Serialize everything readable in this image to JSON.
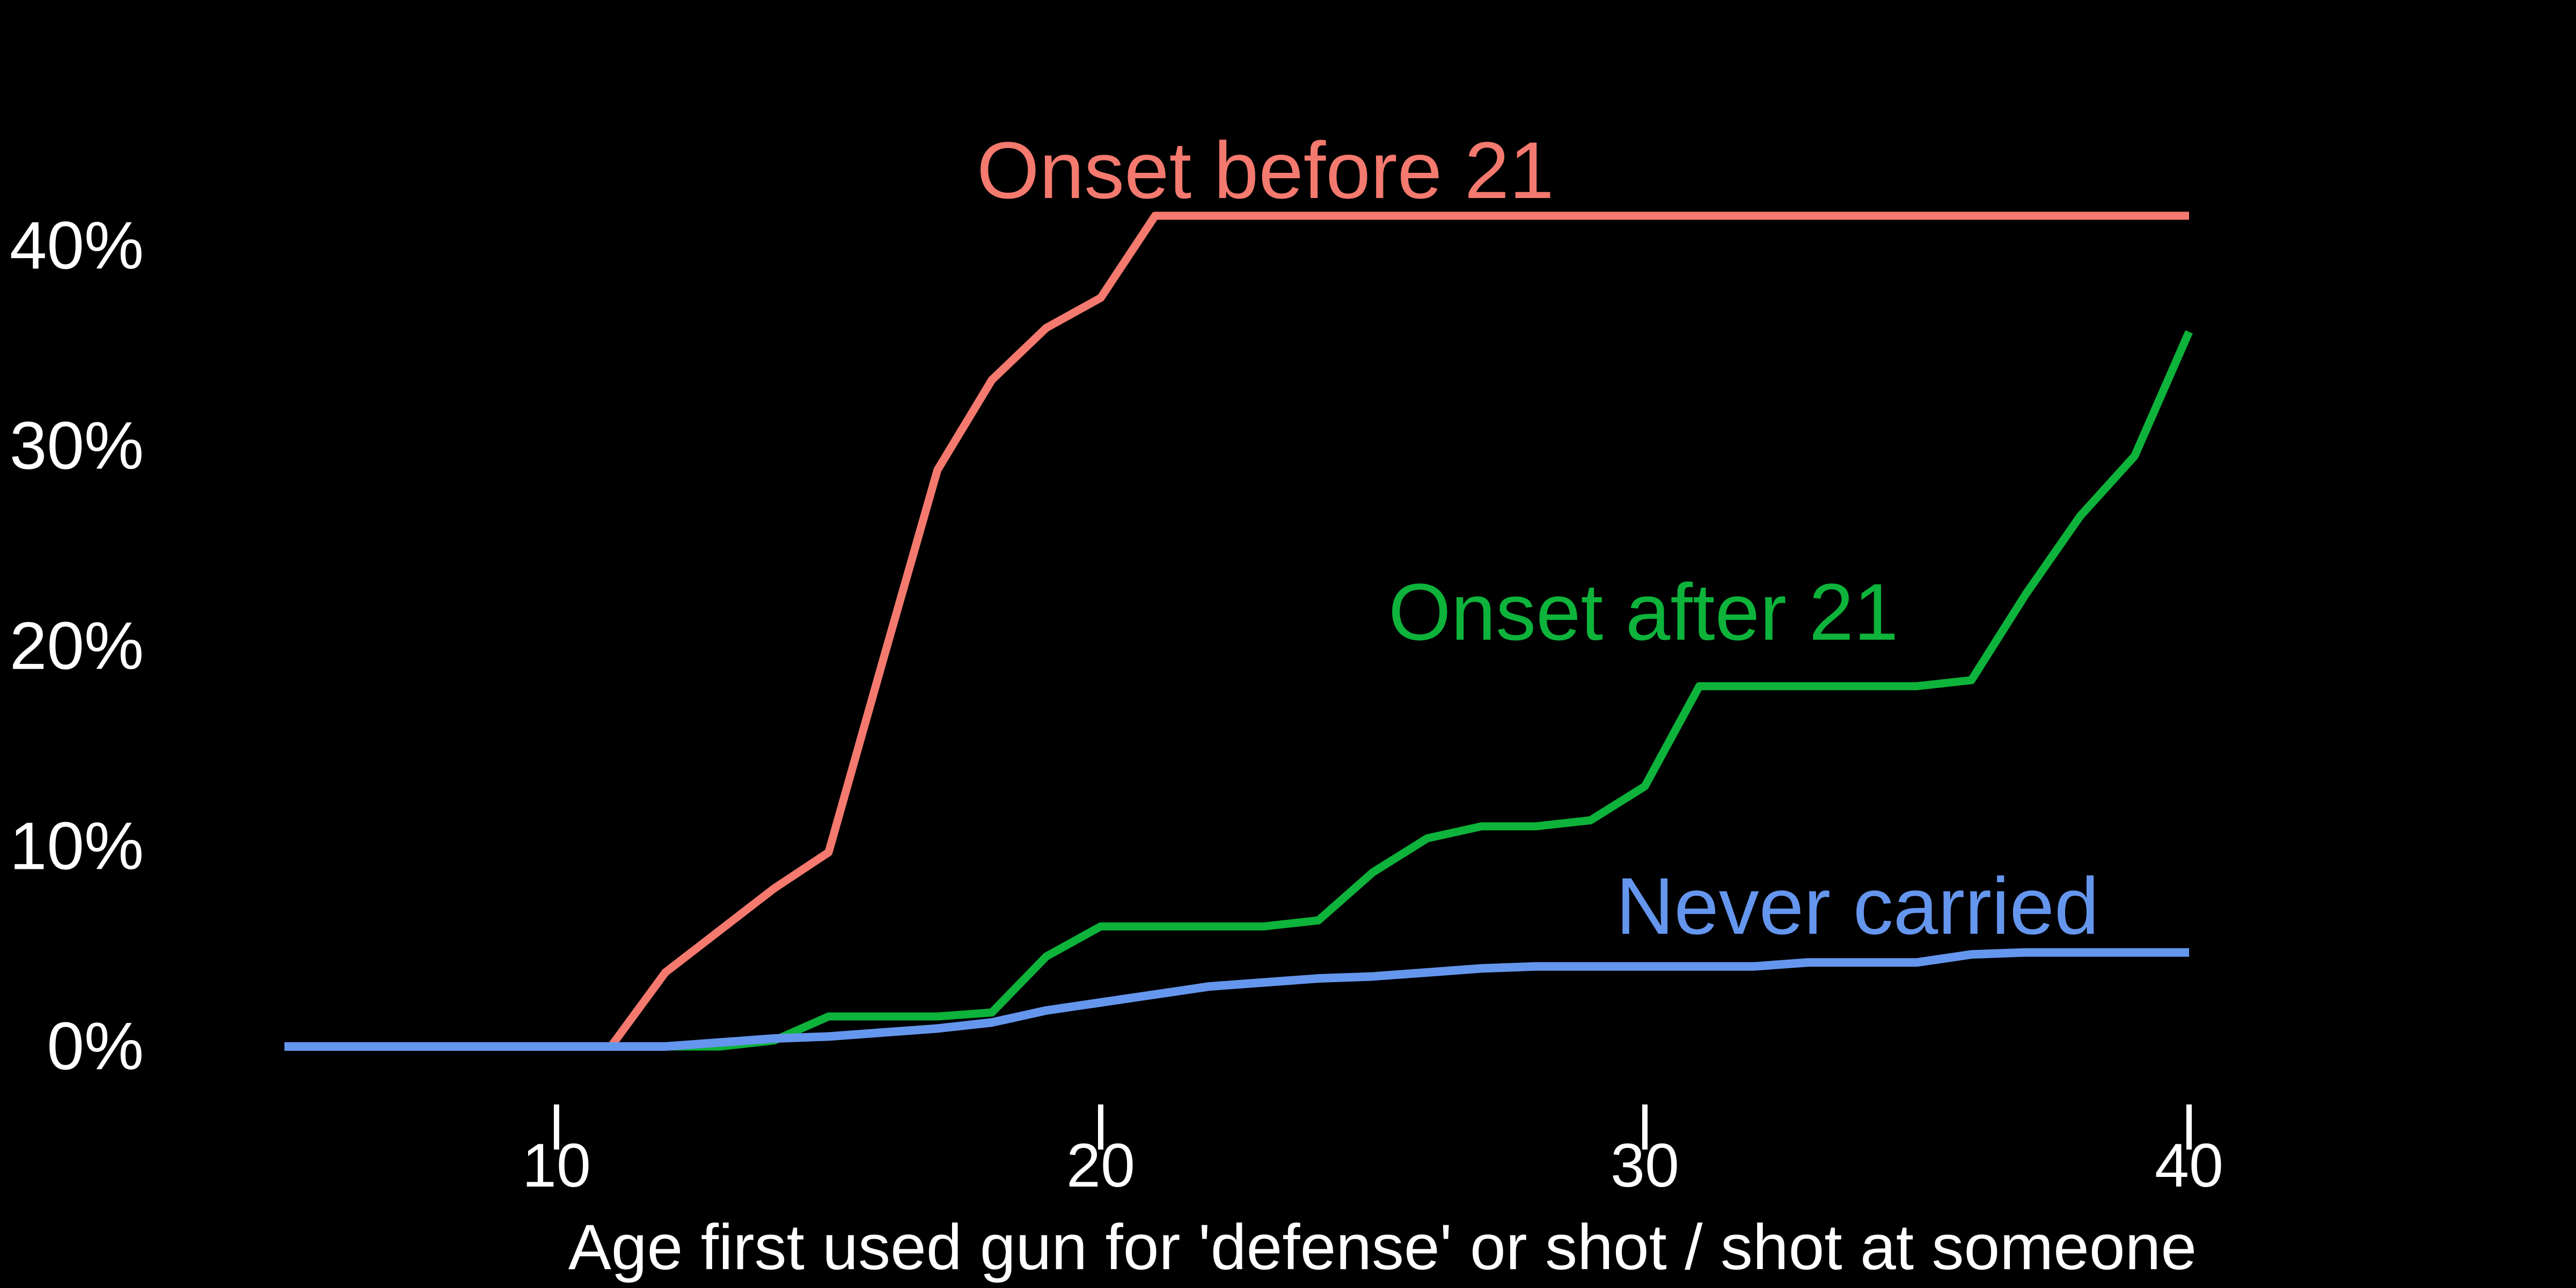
{
  "page": {
    "background": "#000000",
    "axis_text_color": "#ffffff"
  },
  "chart_data": {
    "type": "line",
    "title": "",
    "xlabel": "Age first used gun for 'defense' or shot / shot at someone",
    "ylabel": "",
    "xlim": [
      5,
      43.5
    ],
    "ylim": [
      -1.5,
      45
    ],
    "grid": false,
    "legend_position": "inline-labels",
    "x_ticks": [
      {
        "value": 10,
        "label": "10"
      },
      {
        "value": 20,
        "label": "20"
      },
      {
        "value": 30,
        "label": "30"
      },
      {
        "value": 40,
        "label": "40"
      }
    ],
    "y_ticks": [
      {
        "value": 0,
        "label": "0%"
      },
      {
        "value": 10,
        "label": "10%"
      },
      {
        "value": 20,
        "label": "20%"
      },
      {
        "value": 30,
        "label": "30%"
      },
      {
        "value": 40,
        "label": "40%"
      }
    ],
    "x": [
      5,
      6,
      7,
      8,
      9,
      10,
      11,
      12,
      13,
      14,
      15,
      16,
      17,
      18,
      19,
      20,
      21,
      22,
      23,
      24,
      25,
      26,
      27,
      28,
      29,
      30,
      31,
      32,
      33,
      34,
      35,
      36,
      37,
      38,
      39,
      40
    ],
    "series": [
      {
        "name": "onset_before_21",
        "label": "Onset before 21",
        "color": "#f4796e",
        "values": [
          0,
          0,
          0,
          0,
          0,
          0,
          0,
          3.7,
          5.8,
          7.9,
          9.7,
          19.3,
          28.8,
          33.3,
          35.9,
          37.4,
          41.5,
          41.5,
          41.5,
          41.5,
          41.5,
          41.5,
          41.5,
          41.5,
          41.5,
          41.5,
          41.5,
          41.5,
          41.5,
          41.5,
          41.5,
          41.5,
          41.5,
          41.5,
          41.5,
          41.5
        ]
      },
      {
        "name": "onset_after_21",
        "label": "Onset after 21",
        "color": "#0db33a",
        "values": [
          0,
          0,
          0,
          0,
          0,
          0,
          0,
          0,
          0,
          0.3,
          1.5,
          1.5,
          1.5,
          1.7,
          4.5,
          6,
          6,
          6,
          6,
          6.3,
          8.7,
          10.4,
          11,
          11,
          11.3,
          13,
          18,
          18,
          18,
          18,
          18,
          18.3,
          22.6,
          26.5,
          29.5,
          35.7
        ]
      },
      {
        "name": "never_carried",
        "label": "Never carried",
        "color": "#6596ee",
        "values": [
          0,
          0,
          0,
          0,
          0,
          0,
          0,
          0,
          0.2,
          0.4,
          0.5,
          0.7,
          0.9,
          1.2,
          1.8,
          2.2,
          2.6,
          3,
          3.2,
          3.4,
          3.5,
          3.7,
          3.9,
          4,
          4,
          4,
          4,
          4,
          4.2,
          4.2,
          4.2,
          4.6,
          4.7,
          4.7,
          4.7,
          4.7
        ]
      }
    ]
  }
}
